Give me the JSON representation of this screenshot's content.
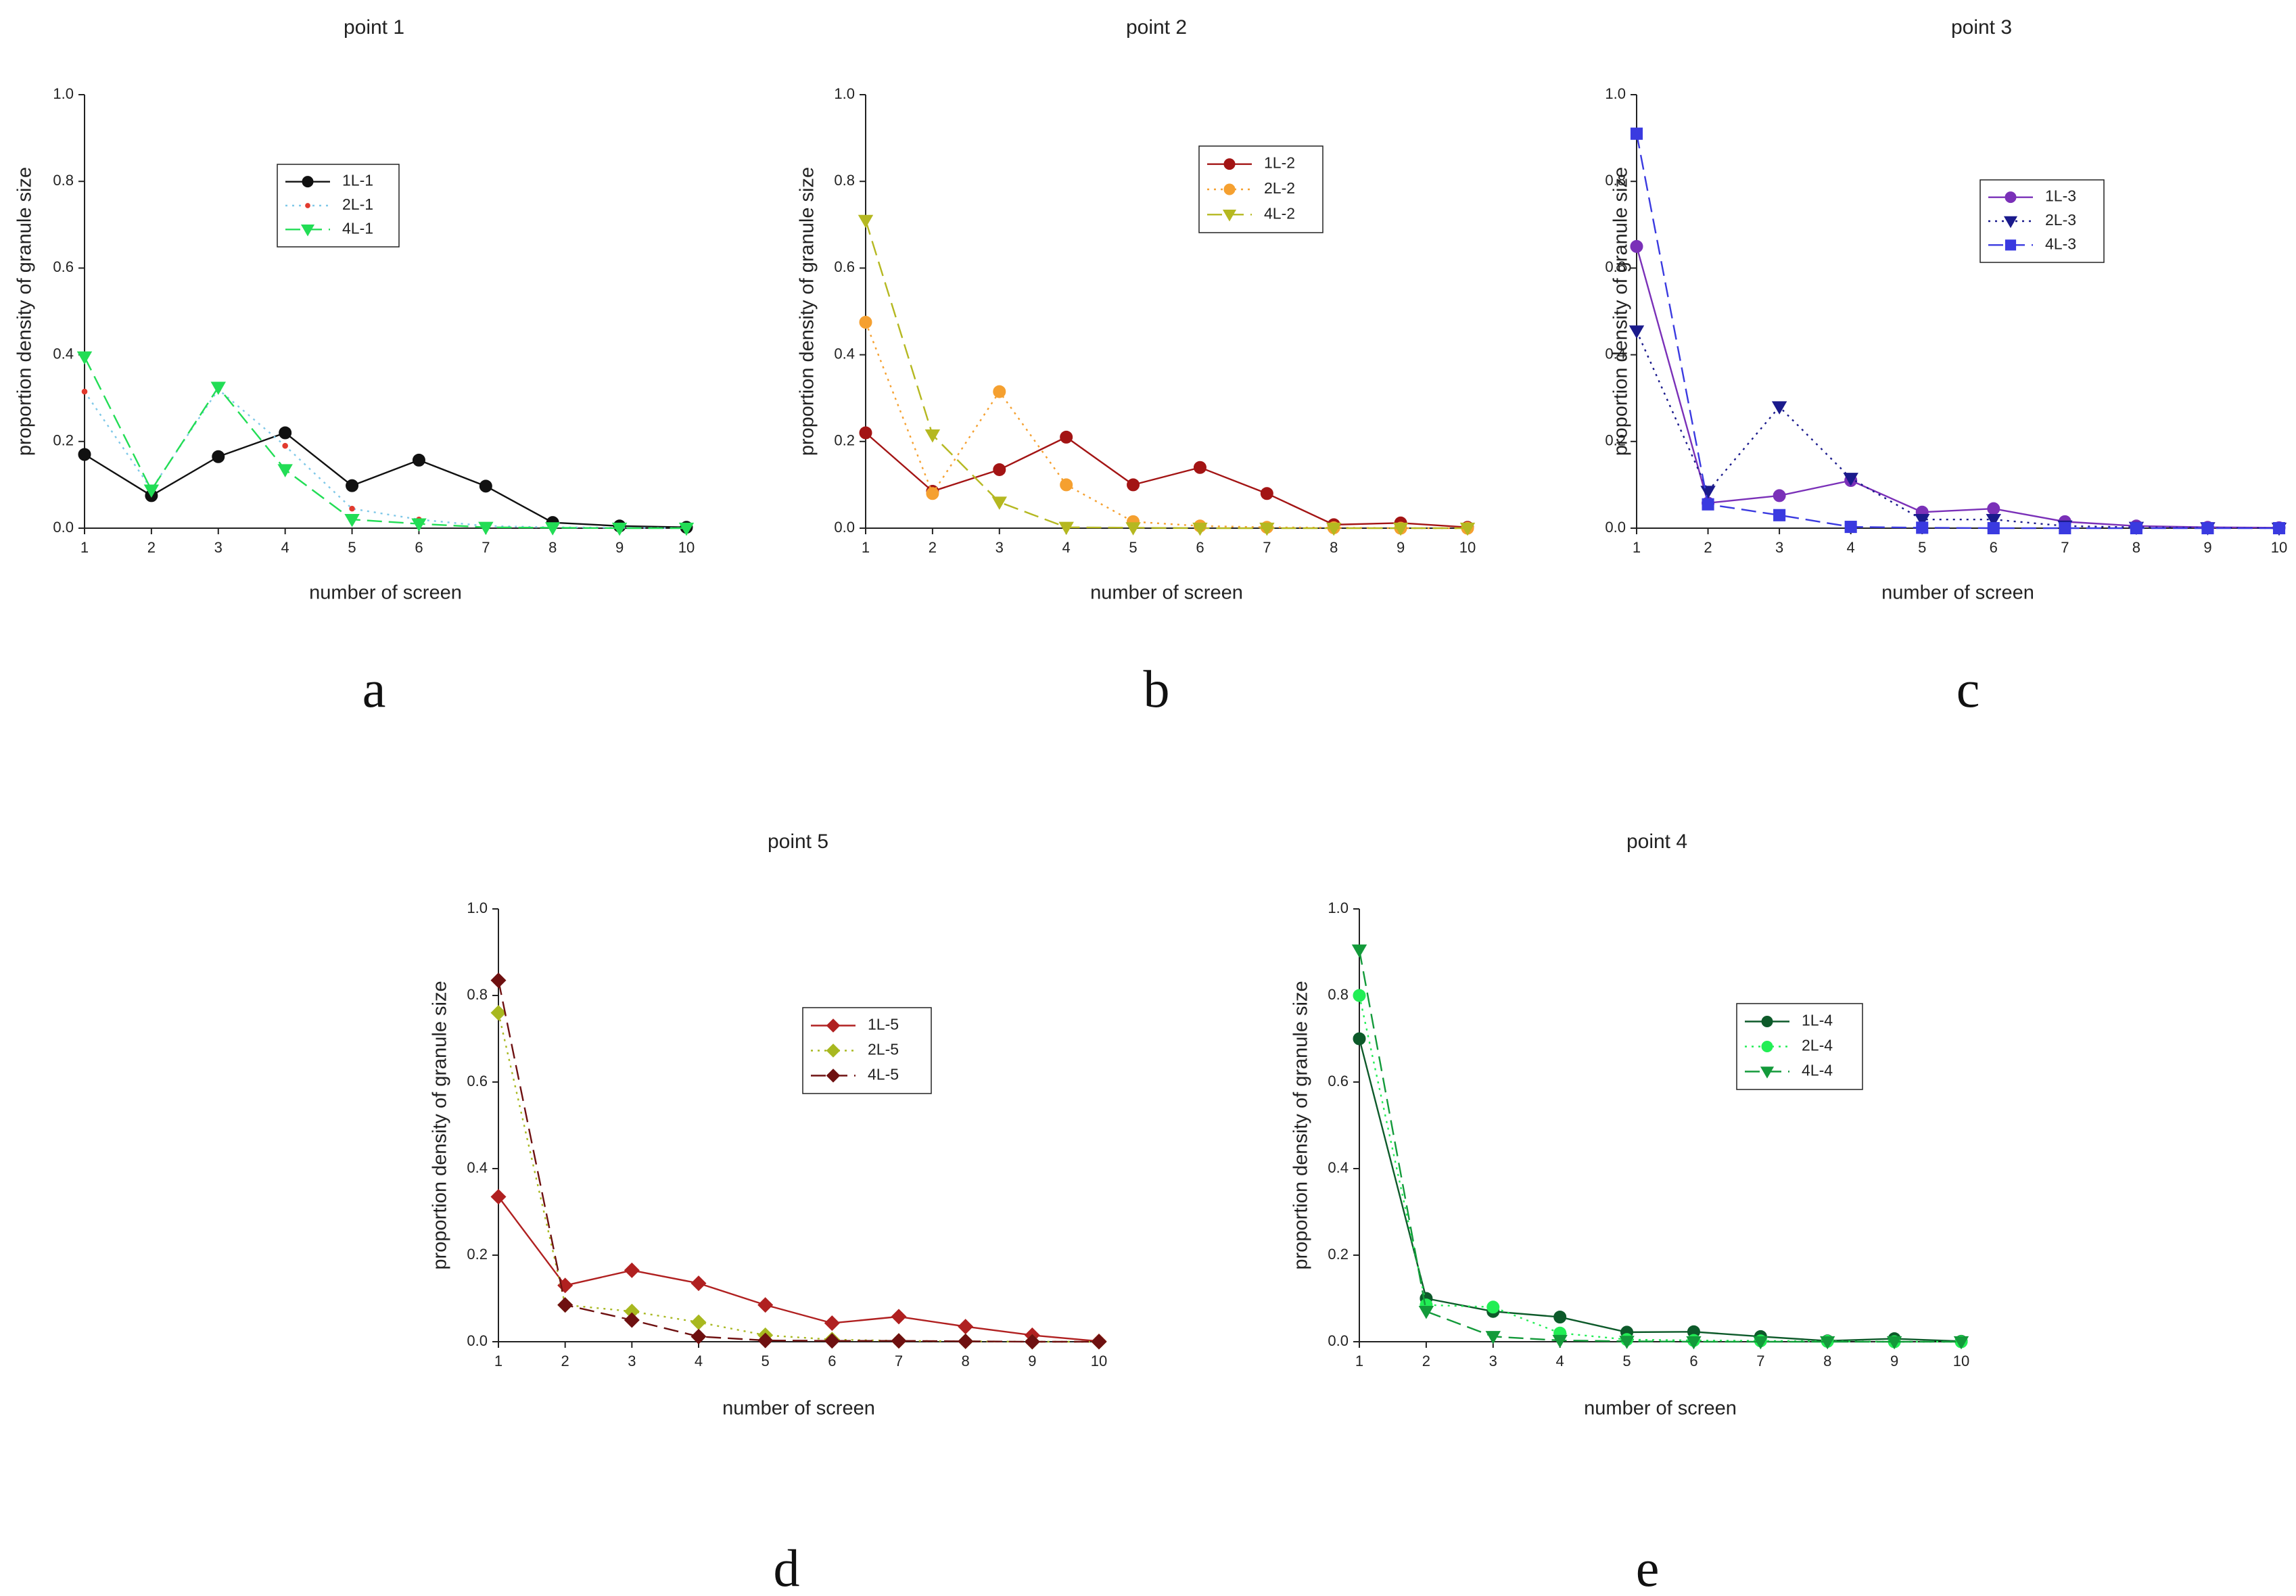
{
  "figure": {
    "panel_letters": [
      "a",
      "b",
      "c",
      "d",
      "e"
    ]
  },
  "chart_data": [
    {
      "type": "line",
      "title": "point 1",
      "xlabel": "number of screen",
      "ylabel": "proportion density of granule size",
      "xlim": [
        1,
        10
      ],
      "ylim": [
        0,
        1.0
      ],
      "x": [
        1,
        2,
        3,
        4,
        5,
        6,
        7,
        8,
        9,
        10
      ],
      "yticks": [
        "0.0",
        "0.2",
        "0.4",
        "0.6",
        "0.8",
        "1.0"
      ],
      "series": [
        {
          "name": "1L-1",
          "color": "#111111",
          "marker": "circle",
          "dash": "solid",
          "values": [
            0.17,
            0.075,
            0.165,
            0.22,
            0.098,
            0.157,
            0.097,
            0.013,
            0.005,
            0.002
          ]
        },
        {
          "name": "2L-1",
          "color": "#e23a2e",
          "line_color": "#7fc8e8",
          "marker": "dot",
          "dash": "dotted",
          "values": [
            0.315,
            0.09,
            0.32,
            0.19,
            0.045,
            0.02,
            0.005,
            0.002,
            0.001,
            0.0
          ]
        },
        {
          "name": "4L-1",
          "color": "#22dd55",
          "marker": "triangle-down",
          "dash": "dashed",
          "values": [
            0.395,
            0.088,
            0.325,
            0.135,
            0.02,
            0.01,
            0.002,
            0.001,
            0.0,
            0.0
          ]
        }
      ]
    },
    {
      "type": "line",
      "title": "point 2",
      "xlabel": "number of screen",
      "ylabel": "proportion density of granule size",
      "xlim": [
        1,
        10
      ],
      "ylim": [
        0,
        1.0
      ],
      "x": [
        1,
        2,
        3,
        4,
        5,
        6,
        7,
        8,
        9,
        10
      ],
      "yticks": [
        "0.0",
        "0.2",
        "0.4",
        "0.6",
        "0.8",
        "1.0"
      ],
      "series": [
        {
          "name": "1L-2",
          "color": "#a31414",
          "marker": "circle",
          "dash": "solid",
          "values": [
            0.22,
            0.085,
            0.135,
            0.21,
            0.1,
            0.14,
            0.08,
            0.008,
            0.012,
            0.002
          ]
        },
        {
          "name": "2L-2",
          "color": "#f5a030",
          "marker": "circle",
          "dash": "dotted",
          "values": [
            0.475,
            0.08,
            0.315,
            0.1,
            0.015,
            0.005,
            0.002,
            0.001,
            0.0,
            0.0
          ]
        },
        {
          "name": "4L-2",
          "color": "#b5b820",
          "marker": "triangle-down",
          "dash": "dashed",
          "values": [
            0.71,
            0.215,
            0.06,
            0.002,
            0.001,
            0.0,
            0.0,
            0.0,
            0.0,
            0.0
          ]
        }
      ]
    },
    {
      "type": "line",
      "title": "point 3",
      "xlabel": "number of screen",
      "ylabel": "proportion density of granule size",
      "xlim": [
        1,
        10
      ],
      "ylim": [
        0,
        1.0
      ],
      "x": [
        1,
        2,
        3,
        4,
        5,
        6,
        7,
        8,
        9,
        10
      ],
      "yticks": [
        "0.0",
        "0.2",
        "0.4",
        "0.6",
        "0.8",
        "1.0"
      ],
      "series": [
        {
          "name": "1L-3",
          "color": "#7a30b8",
          "marker": "circle",
          "dash": "solid",
          "values": [
            0.65,
            0.058,
            0.075,
            0.11,
            0.037,
            0.045,
            0.015,
            0.005,
            0.002,
            0.001
          ]
        },
        {
          "name": "2L-3",
          "color": "#1a1a8c",
          "marker": "triangle-down",
          "dash": "dotted",
          "values": [
            0.455,
            0.085,
            0.28,
            0.115,
            0.02,
            0.02,
            0.005,
            0.002,
            0.001,
            0.0
          ]
        },
        {
          "name": "4L-3",
          "color": "#3a3ae0",
          "marker": "square",
          "dash": "dashed",
          "values": [
            0.91,
            0.055,
            0.03,
            0.003,
            0.001,
            0.0,
            0.0,
            0.0,
            0.0,
            0.0
          ]
        }
      ]
    },
    {
      "type": "line",
      "title": "point 5",
      "xlabel": "number of screen",
      "ylabel": "proportion density of granule size",
      "xlim": [
        1,
        10
      ],
      "ylim": [
        0,
        1.0
      ],
      "x": [
        1,
        2,
        3,
        4,
        5,
        6,
        7,
        8,
        9,
        10
      ],
      "yticks": [
        "0.0",
        "0.2",
        "0.4",
        "0.6",
        "0.8",
        "1.0"
      ],
      "series": [
        {
          "name": "1L-5",
          "color": "#b02020",
          "marker": "diamond",
          "dash": "solid",
          "values": [
            0.335,
            0.13,
            0.165,
            0.135,
            0.085,
            0.043,
            0.058,
            0.035,
            0.015,
            0.001
          ]
        },
        {
          "name": "2L-5",
          "color": "#a8b820",
          "marker": "diamond",
          "dash": "dotted",
          "values": [
            0.76,
            0.085,
            0.07,
            0.045,
            0.015,
            0.005,
            0.002,
            0.001,
            0.0,
            0.0
          ]
        },
        {
          "name": "4L-5",
          "color": "#6e1010",
          "marker": "diamond",
          "dash": "dashed",
          "values": [
            0.835,
            0.085,
            0.05,
            0.012,
            0.003,
            0.002,
            0.002,
            0.001,
            0.0,
            0.0
          ]
        }
      ]
    },
    {
      "type": "line",
      "title": "point 4",
      "xlabel": "number of screen",
      "ylabel": "proportion density of granule size",
      "xlim": [
        1,
        10
      ],
      "ylim": [
        0,
        1.0
      ],
      "x": [
        1,
        2,
        3,
        4,
        5,
        6,
        7,
        8,
        9,
        10
      ],
      "yticks": [
        "0.0",
        "0.2",
        "0.4",
        "0.6",
        "0.8",
        "1.0"
      ],
      "series": [
        {
          "name": "1L-4",
          "color": "#0d5a2a",
          "marker": "circle",
          "dash": "solid",
          "values": [
            0.7,
            0.1,
            0.07,
            0.057,
            0.022,
            0.023,
            0.012,
            0.002,
            0.007,
            0.001
          ]
        },
        {
          "name": "2L-4",
          "color": "#22ee55",
          "marker": "circle",
          "dash": "dotted",
          "values": [
            0.8,
            0.085,
            0.08,
            0.02,
            0.005,
            0.003,
            0.002,
            0.001,
            0.0,
            0.0
          ]
        },
        {
          "name": "4L-4",
          "color": "#139a3a",
          "marker": "triangle-down",
          "dash": "dashed",
          "values": [
            0.905,
            0.07,
            0.012,
            0.003,
            0.001,
            0.0,
            0.0,
            0.0,
            0.0,
            0.0
          ]
        }
      ]
    }
  ]
}
